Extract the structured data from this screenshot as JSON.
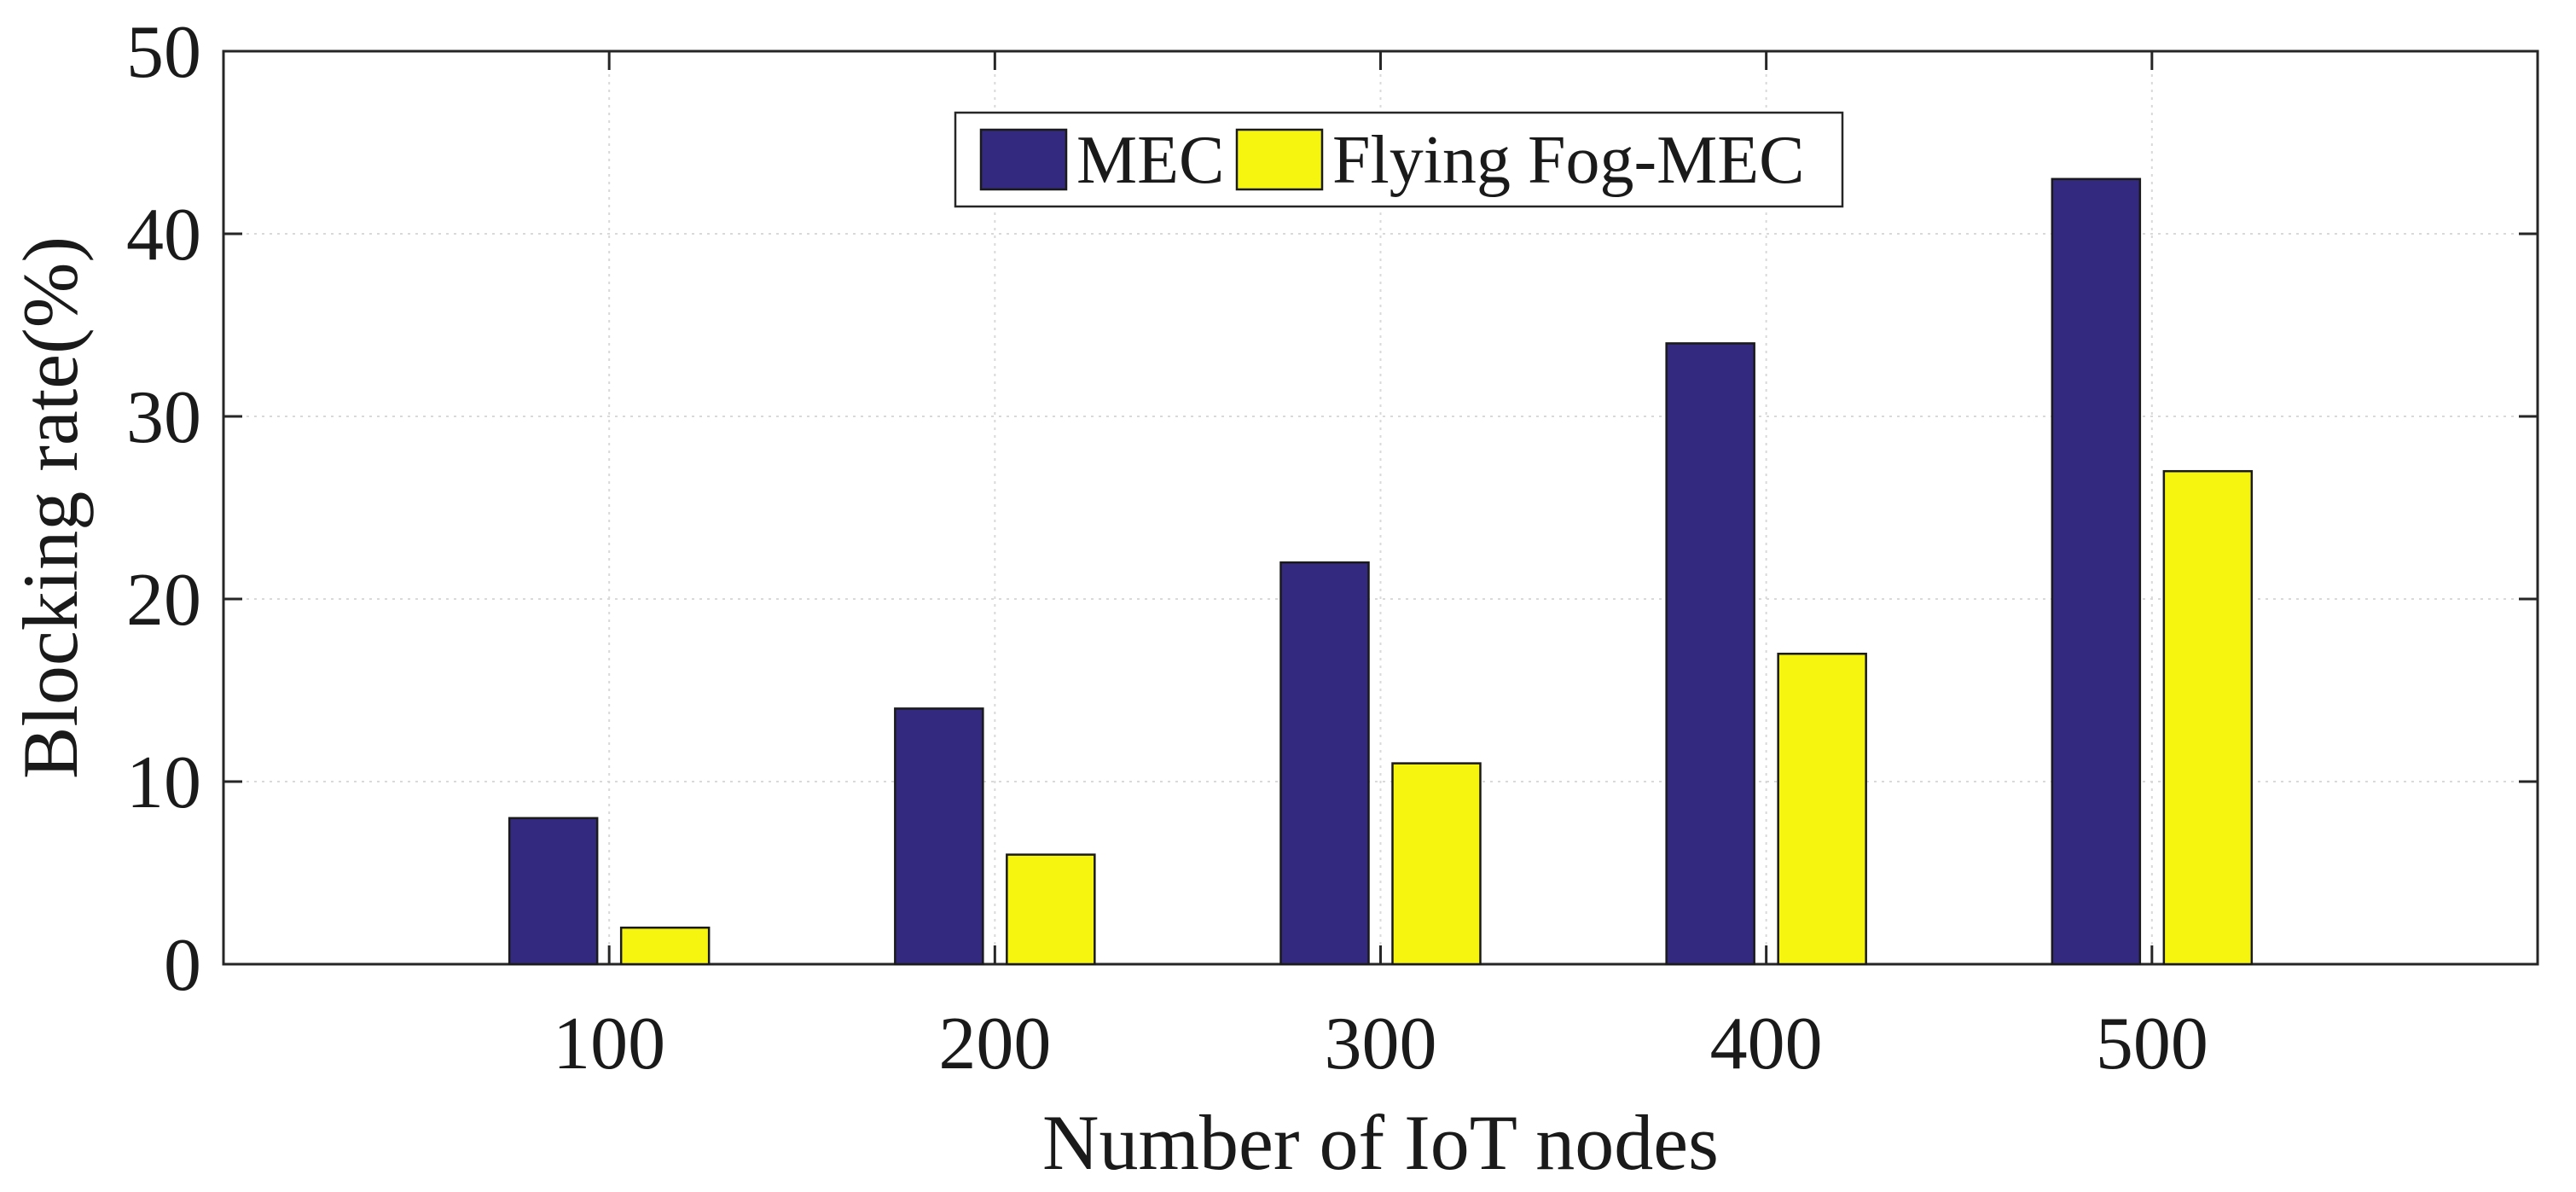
{
  "chart_data": {
    "type": "bar",
    "title": "",
    "xlabel": "Number of IoT nodes",
    "ylabel": "Blocking rate(%)",
    "categories": [
      "100",
      "200",
      "300",
      "400",
      "500"
    ],
    "ylim": [
      0,
      50
    ],
    "yticks": [
      0,
      10,
      20,
      30,
      40,
      50
    ],
    "grid": true,
    "legend_position": "top-center",
    "series": [
      {
        "name": "MEC",
        "values": [
          8,
          14,
          22,
          34,
          43
        ],
        "color": "#332a80"
      },
      {
        "name": "Flying Fog-MEC",
        "values": [
          2,
          6,
          11,
          17,
          27
        ],
        "color": "#f5f50f"
      }
    ]
  }
}
